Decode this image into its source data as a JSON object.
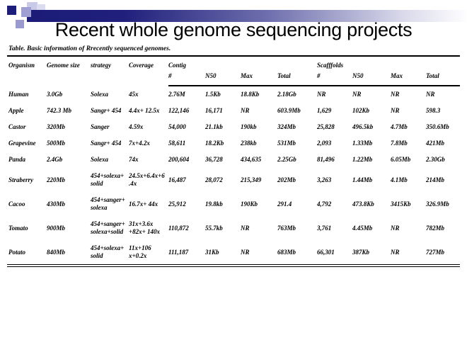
{
  "slide": {
    "title": "Recent whole genome sequencing projects"
  },
  "colors": {
    "accent_navy": "#1d1d7a",
    "accent_lavender_light": "#c9c9e8",
    "accent_lavender_medium": "#9f9fd4",
    "bar_gradient_start": "#1b1b78",
    "bar_gradient_end": "#ffffff"
  },
  "table": {
    "caption": "Table. Basic information of Rrecently sequenced genomes.",
    "headers": {
      "organism": "Organism",
      "genome_size": "Genome size",
      "strategy": "strategy",
      "coverage": "Coverage",
      "contig": "Contig",
      "scaffolds": "Scafffolds",
      "sub": [
        "#",
        "N50",
        "Max",
        "Total",
        "#",
        "N50",
        "Max",
        "Total"
      ]
    },
    "rows": [
      [
        "Human",
        "3.0Gb",
        "Solexa",
        "45x",
        "2.76M",
        "1.5Kb",
        "18.8Kb",
        "2.18Gb",
        "NR",
        "NR",
        "NR",
        "NR"
      ],
      [
        "Apple",
        "742.3 Mb",
        "Sangr+ 454",
        "4.4x+ 12.5x",
        "122,146",
        "16,171",
        "NR",
        "603.9Mb",
        "1,629",
        "102Kb",
        "NR",
        "598.3"
      ],
      [
        "Castor",
        "320Mb",
        "Sanger",
        "4.59x",
        "54,000",
        "21.1kb",
        "190kb",
        "324Mb",
        "25,828",
        "496.5kb",
        "4.7Mb",
        "350.6Mb"
      ],
      [
        "Grapevine",
        "500Mb",
        "Sangr+ 454",
        "7x+4.2x",
        "58,611",
        "18.2Kb",
        "238kb",
        "531Mb",
        "2,093",
        "1.33Mb",
        "7.8Mb",
        "421Mb"
      ],
      [
        "Panda",
        "2.4Gb",
        "Solexa",
        "74x",
        "200,604",
        "36,728",
        "434,635",
        "2.25Gb",
        "81,496",
        "1.22Mb",
        "6.05Mb",
        "2.30Gb"
      ],
      [
        "Straberry",
        "220Mb",
        "454+solexa+solid",
        "24.5x+6.4x+6.4x",
        "16,487",
        "28,072",
        "215,349",
        "202Mb",
        "3,263",
        "1.44Mb",
        "4.1Mb",
        "214Mb"
      ],
      [
        "Cacoo",
        "430Mb",
        "454+sanger+solexa",
        "16.7x+ 44x",
        "25,912",
        "19.8kb",
        "190Kb",
        "291.4",
        "4,792",
        "473.8Kb",
        "3415Kb",
        "326.9Mb"
      ],
      [
        "Tomato",
        "900Mb",
        "454+sanger+solexa+solid",
        "31x+3.6x +82x+ 140x",
        "110,872",
        "55.7kb",
        "NR",
        "763Mb",
        "3,761",
        "4.45Mb",
        "NR",
        "782Mb"
      ],
      [
        "Potato",
        "840Mb",
        "454+solexa+solid",
        "11x+106 x+0.2x",
        "111,187",
        "31Kb",
        "NR",
        "683Mb",
        "66,301",
        "387Kb",
        "NR",
        "727Mb"
      ]
    ]
  }
}
